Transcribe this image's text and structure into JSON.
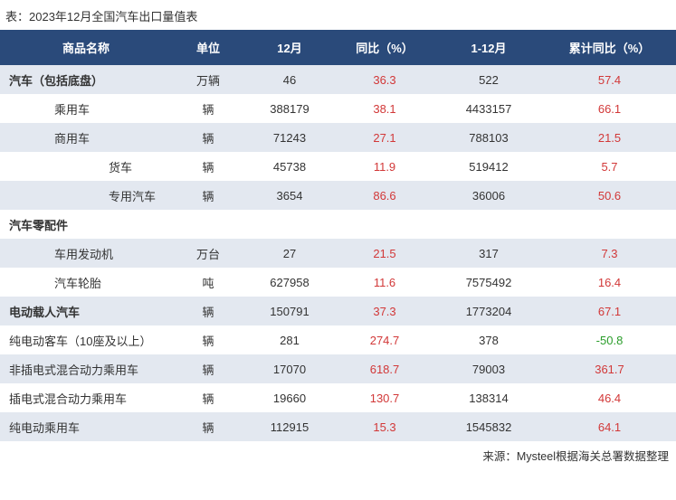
{
  "caption": "表：2023年12月全国汽车出口量值表",
  "headers": [
    "商品名称",
    "单位",
    "12月",
    "同比（%）",
    "1-12月",
    "累计同比（%）"
  ],
  "rows": [
    {
      "name": "汽车（包括底盘）",
      "bold": true,
      "indent": 0,
      "unit": "万辆",
      "dec": "46",
      "yoy": "36.3",
      "yoy_color": "red",
      "ytd": "522",
      "cyoy": "57.4",
      "cyoy_color": "red"
    },
    {
      "name": "乘用车",
      "bold": false,
      "indent": 1,
      "unit": "辆",
      "dec": "388179",
      "yoy": "38.1",
      "yoy_color": "red",
      "ytd": "4433157",
      "cyoy": "66.1",
      "cyoy_color": "red"
    },
    {
      "name": "商用车",
      "bold": false,
      "indent": 1,
      "unit": "辆",
      "dec": "71243",
      "yoy": "27.1",
      "yoy_color": "red",
      "ytd": "788103",
      "cyoy": "21.5",
      "cyoy_color": "red"
    },
    {
      "name": "货车",
      "bold": false,
      "indent": 2,
      "unit": "辆",
      "dec": "45738",
      "yoy": "11.9",
      "yoy_color": "red",
      "ytd": "519412",
      "cyoy": "5.7",
      "cyoy_color": "red"
    },
    {
      "name": "专用汽车",
      "bold": false,
      "indent": 2,
      "unit": "辆",
      "dec": "3654",
      "yoy": "86.6",
      "yoy_color": "red",
      "ytd": "36006",
      "cyoy": "50.6",
      "cyoy_color": "red"
    },
    {
      "name": "汽车零配件",
      "bold": true,
      "indent": 0,
      "unit": "",
      "dec": "",
      "yoy": "",
      "yoy_color": "",
      "ytd": "",
      "cyoy": "",
      "cyoy_color": ""
    },
    {
      "name": "车用发动机",
      "bold": false,
      "indent": 1,
      "unit": "万台",
      "dec": "27",
      "yoy": "21.5",
      "yoy_color": "red",
      "ytd": "317",
      "cyoy": "7.3",
      "cyoy_color": "red"
    },
    {
      "name": "汽车轮胎",
      "bold": false,
      "indent": 1,
      "unit": "吨",
      "dec": "627958",
      "yoy": "11.6",
      "yoy_color": "red",
      "ytd": "7575492",
      "cyoy": "16.4",
      "cyoy_color": "red"
    },
    {
      "name": "电动载人汽车",
      "bold": true,
      "indent": 0,
      "unit": "辆",
      "dec": "150791",
      "yoy": "37.3",
      "yoy_color": "red",
      "ytd": "1773204",
      "cyoy": "67.1",
      "cyoy_color": "red"
    },
    {
      "name": "纯电动客车（10座及以上）",
      "bold": false,
      "indent": 0,
      "unit": "辆",
      "dec": "281",
      "yoy": "274.7",
      "yoy_color": "red",
      "ytd": "378",
      "cyoy": "-50.8",
      "cyoy_color": "green"
    },
    {
      "name": "非插电式混合动力乘用车",
      "bold": false,
      "indent": 0,
      "unit": "辆",
      "dec": "17070",
      "yoy": "618.7",
      "yoy_color": "red",
      "ytd": "79003",
      "cyoy": "361.7",
      "cyoy_color": "red"
    },
    {
      "name": "插电式混合动力乘用车",
      "bold": false,
      "indent": 0,
      "unit": "辆",
      "dec": "19660",
      "yoy": "130.7",
      "yoy_color": "red",
      "ytd": "138314",
      "cyoy": "46.4",
      "cyoy_color": "red"
    },
    {
      "name": "纯电动乘用车",
      "bold": false,
      "indent": 0,
      "unit": "辆",
      "dec": "112915",
      "yoy": "15.3",
      "yoy_color": "red",
      "ytd": "1545832",
      "cyoy": "64.1",
      "cyoy_color": "red"
    }
  ],
  "source": "来源：Mysteel根据海关总署数据整理",
  "colors": {
    "header_bg": "#2a4a7a",
    "header_fg": "#ffffff",
    "even_row": "#e3e8f0",
    "odd_row": "#ffffff",
    "red": "#d23838",
    "green": "#2a9d2a"
  }
}
